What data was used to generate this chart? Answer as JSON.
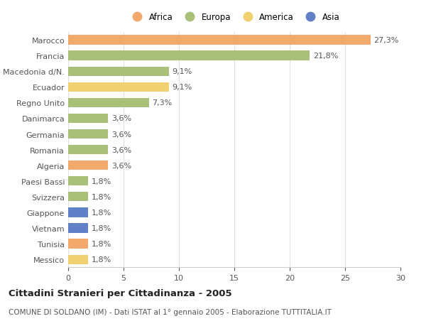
{
  "countries": [
    "Marocco",
    "Francia",
    "Macedonia d/N.",
    "Ecuador",
    "Regno Unito",
    "Danimarca",
    "Germania",
    "Romania",
    "Algeria",
    "Paesi Bassi",
    "Svizzera",
    "Giappone",
    "Vietnam",
    "Tunisia",
    "Messico"
  ],
  "values": [
    27.3,
    21.8,
    9.1,
    9.1,
    7.3,
    3.6,
    3.6,
    3.6,
    3.6,
    1.8,
    1.8,
    1.8,
    1.8,
    1.8,
    1.8
  ],
  "labels": [
    "27,3%",
    "21,8%",
    "9,1%",
    "9,1%",
    "7,3%",
    "3,6%",
    "3,6%",
    "3,6%",
    "3,6%",
    "1,8%",
    "1,8%",
    "1,8%",
    "1,8%",
    "1,8%",
    "1,8%"
  ],
  "continents": [
    "Africa",
    "Europa",
    "Europa",
    "America",
    "Europa",
    "Europa",
    "Europa",
    "Europa",
    "Africa",
    "Europa",
    "Europa",
    "Asia",
    "Asia",
    "Africa",
    "America"
  ],
  "colors": {
    "Africa": "#F2A96B",
    "Europa": "#A8C07A",
    "America": "#F0D070",
    "Asia": "#6080C8"
  },
  "title": "Cittadini Stranieri per Cittadinanza - 2005",
  "subtitle": "COMUNE DI SOLDANO (IM) - Dati ISTAT al 1° gennaio 2005 - Elaborazione TUTTITALIA.IT",
  "xlim": [
    0,
    30
  ],
  "xticks": [
    0,
    5,
    10,
    15,
    20,
    25,
    30
  ],
  "background_color": "#ffffff",
  "grid_color": "#e0e0e0",
  "bar_height": 0.6,
  "label_fontsize": 8,
  "tick_fontsize": 8,
  "title_fontsize": 9.5,
  "subtitle_fontsize": 7.5,
  "legend_order": [
    "Africa",
    "Europa",
    "America",
    "Asia"
  ]
}
